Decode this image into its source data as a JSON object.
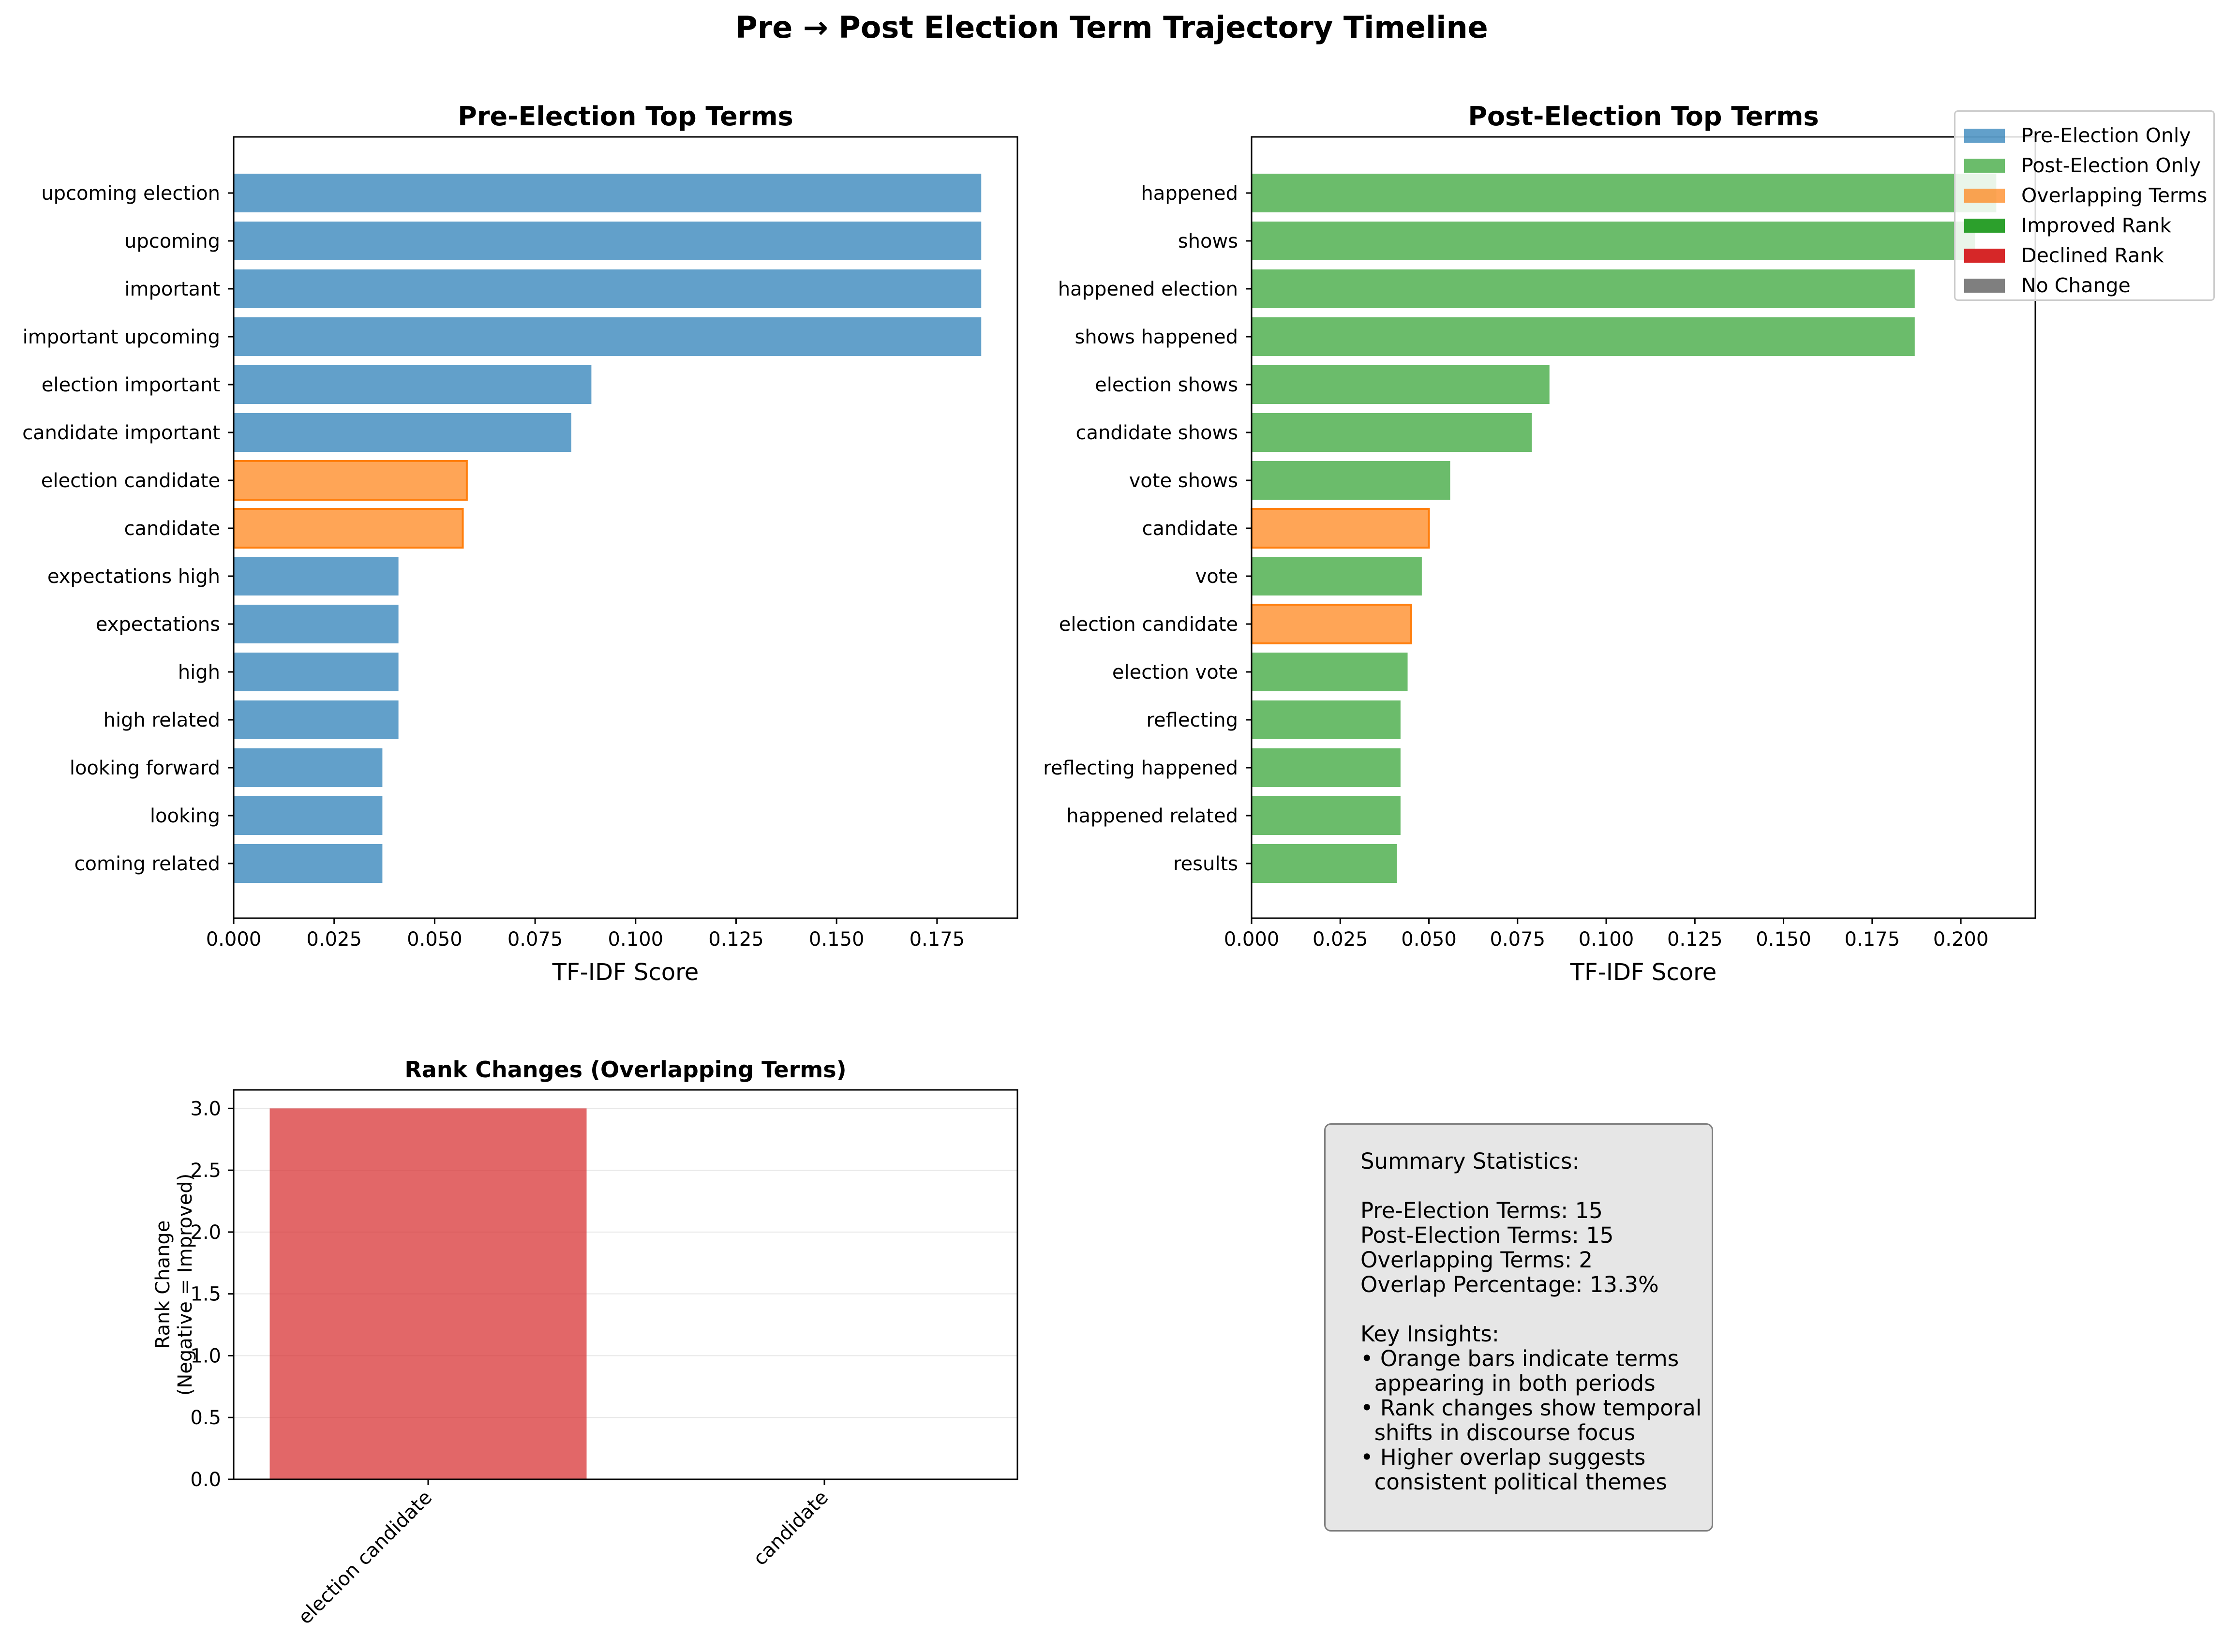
{
  "figure": {
    "title": "Pre → Post Election Term Trajectory Timeline"
  },
  "colors": {
    "pre_only": "#1f77b4",
    "post_only": "#2ca02c",
    "overlap": "#ff7f0e",
    "improved": "#2ca02c",
    "declined": "#d62728",
    "no_change": "#7f7f7f"
  },
  "legend": {
    "items": [
      {
        "label": "Pre-Election Only",
        "color": "#1f77b4",
        "alpha": 0.7
      },
      {
        "label": "Post-Election Only",
        "color": "#2ca02c",
        "alpha": 0.7
      },
      {
        "label": "Overlapping Terms",
        "color": "#ff7f0e",
        "alpha": 0.7
      },
      {
        "label": "Improved Rank",
        "color": "#2ca02c",
        "alpha": 1
      },
      {
        "label": "Declined Rank",
        "color": "#d62728",
        "alpha": 1
      },
      {
        "label": "No Change",
        "color": "#7f7f7f",
        "alpha": 1
      }
    ]
  },
  "summary": {
    "lines": [
      "Summary Statistics:",
      "",
      "Pre-Election Terms: 15",
      "Post-Election Terms: 15",
      "Overlapping Terms: 2",
      "Overlap Percentage: 13.3%",
      "",
      "Key Insights:",
      "• Orange bars indicate terms",
      "  appearing in both periods",
      "• Rank changes show temporal",
      "  shifts in discourse focus",
      "• Higher overlap suggests",
      "  consistent political themes"
    ]
  },
  "chart_data": [
    {
      "type": "bar",
      "orientation": "horizontal",
      "title": "Pre-Election Top Terms",
      "xlabel": "TF-IDF Score",
      "ylabel": "",
      "xlim": [
        0,
        0.195
      ],
      "xticks": [
        "0.000",
        "0.025",
        "0.050",
        "0.075",
        "0.100",
        "0.125",
        "0.150",
        "0.175"
      ],
      "categories": [
        "upcoming election",
        "upcoming",
        "important",
        "important upcoming",
        "election important",
        "candidate important",
        "election candidate",
        "candidate",
        "expectations high",
        "expectations",
        "high",
        "high related",
        "looking forward",
        "looking",
        "coming related"
      ],
      "values": [
        0.186,
        0.186,
        0.186,
        0.186,
        0.089,
        0.084,
        0.058,
        0.057,
        0.041,
        0.041,
        0.041,
        0.041,
        0.037,
        0.037,
        0.037
      ],
      "groups": [
        "pre",
        "pre",
        "pre",
        "pre",
        "pre",
        "pre",
        "overlap",
        "overlap",
        "pre",
        "pre",
        "pre",
        "pre",
        "pre",
        "pre",
        "pre"
      ]
    },
    {
      "type": "bar",
      "orientation": "horizontal",
      "title": "Post-Election Top Terms",
      "xlabel": "TF-IDF Score",
      "ylabel": "",
      "xlim": [
        0,
        0.221
      ],
      "xticks": [
        "0.000",
        "0.025",
        "0.050",
        "0.075",
        "0.100",
        "0.125",
        "0.150",
        "0.175",
        "0.200"
      ],
      "categories": [
        "happened",
        "shows",
        "happened election",
        "shows happened",
        "election shows",
        "candidate shows",
        "vote shows",
        "candidate",
        "vote",
        "election candidate",
        "election vote",
        "reflecting",
        "reflecting happened",
        "happened related",
        "results"
      ],
      "values": [
        0.21,
        0.204,
        0.187,
        0.187,
        0.084,
        0.079,
        0.056,
        0.05,
        0.048,
        0.045,
        0.044,
        0.042,
        0.042,
        0.042,
        0.041
      ],
      "groups": [
        "post",
        "post",
        "post",
        "post",
        "post",
        "post",
        "post",
        "overlap",
        "post",
        "overlap",
        "post",
        "post",
        "post",
        "post",
        "post"
      ]
    },
    {
      "type": "bar",
      "title": "Rank Changes (Overlapping Terms)",
      "xlabel": "",
      "ylabel": "Rank Change\n(Negative = Improved)",
      "ylim": [
        0,
        3.15
      ],
      "yticks": [
        "0.0",
        "0.5",
        "1.0",
        "1.5",
        "2.0",
        "2.5",
        "3.0"
      ],
      "grid": "horizontal",
      "categories": [
        "election candidate",
        "candidate"
      ],
      "values": [
        3,
        0
      ]
    }
  ]
}
